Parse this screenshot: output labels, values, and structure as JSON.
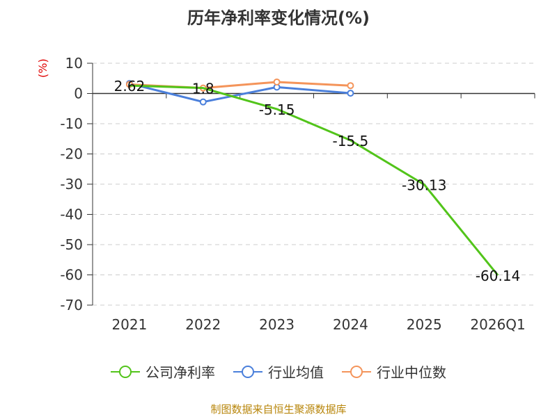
{
  "chart_data": {
    "type": "line",
    "title": "历年净利率变化情况(%)",
    "ylabel": "(%)",
    "categories": [
      "2021",
      "2022",
      "2023",
      "2024",
      "2025",
      "2026Q1"
    ],
    "ylim": [
      -70,
      10
    ],
    "yticks": [
      10,
      0,
      -10,
      -20,
      -30,
      -40,
      -50,
      -60,
      -70
    ],
    "grid": true,
    "legend_position": "bottom",
    "series": [
      {
        "name": "公司净利率",
        "color": "#52c41a",
        "values": [
          2.62,
          1.8,
          -5.15,
          -15.5,
          -30.13,
          -60.14
        ],
        "labels": [
          "2.62",
          "1.8",
          "-5.15",
          "-15.5",
          "-30.13",
          "-60.14"
        ]
      },
      {
        "name": "行业均值",
        "color": "#4a7fdb",
        "values": [
          3.3,
          -2.8,
          2.1,
          0.1,
          null,
          null
        ]
      },
      {
        "name": "行业中位数",
        "color": "#f4945a",
        "values": [
          3.0,
          1.8,
          3.8,
          2.6,
          null,
          null
        ]
      }
    ]
  },
  "source_note": "制图数据来自恒生聚源数据库"
}
